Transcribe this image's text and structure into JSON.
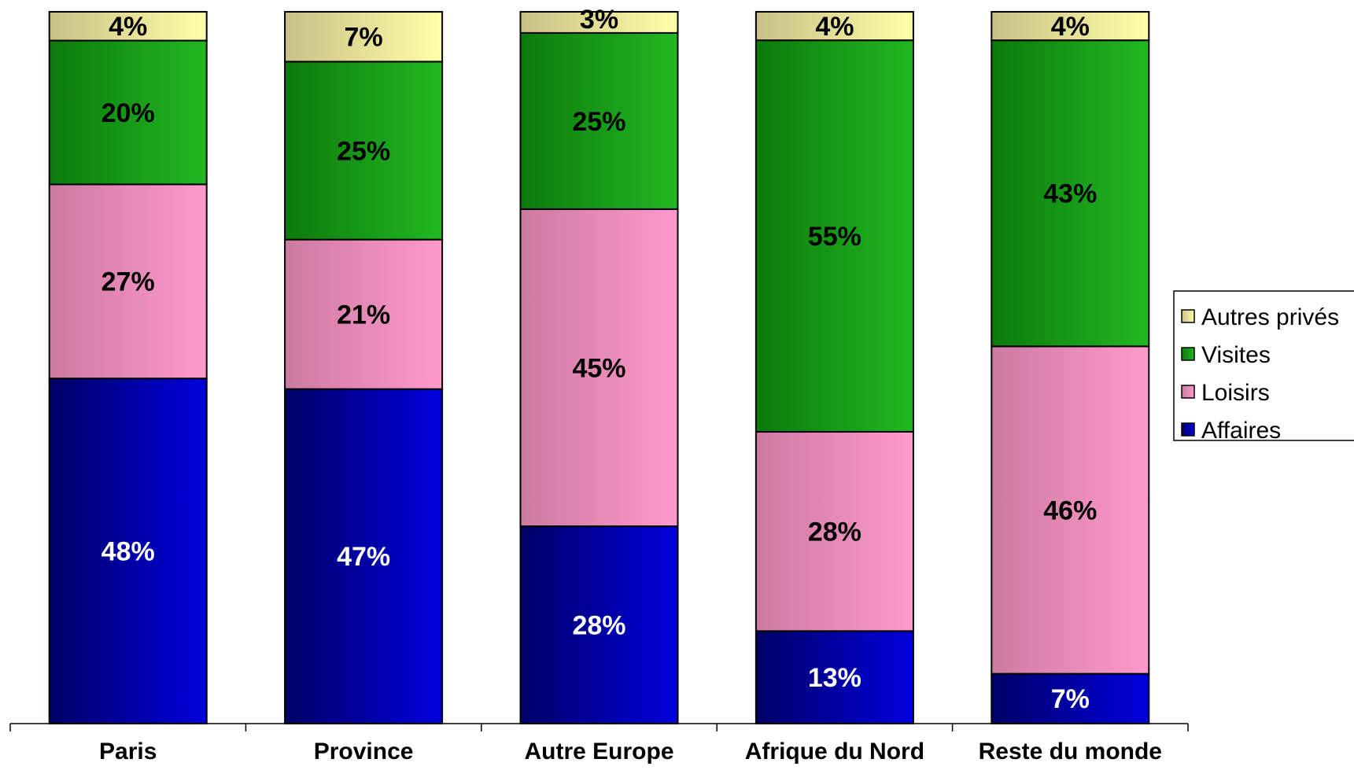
{
  "chart_data": {
    "type": "bar",
    "stacked": true,
    "normalized_percent": true,
    "categories": [
      "Paris",
      "Province",
      "Autre Europe",
      "Afrique du Nord",
      "Reste du monde"
    ],
    "series": [
      {
        "name": "Affaires",
        "values": [
          48,
          47,
          28,
          13,
          7
        ],
        "labels": [
          "48%",
          "47%",
          "28%",
          "13%",
          "7%"
        ],
        "color_dark": "#000066",
        "color_light": "#0000dd",
        "label_color": "#ffffff"
      },
      {
        "name": "Loisirs",
        "values": [
          27,
          21,
          45,
          28,
          46
        ],
        "labels": [
          "27%",
          "21%",
          "45%",
          "28%",
          "46%"
        ],
        "color_dark": "#cc7aa0",
        "color_light": "#ff99cc",
        "label_color": "#000000"
      },
      {
        "name": "Visites",
        "values": [
          20,
          25,
          25,
          55,
          43
        ],
        "labels": [
          "20%",
          "25%",
          "25%",
          "55%",
          "43%"
        ],
        "color_dark": "#0c7a0c",
        "color_light": "#22b822",
        "label_color": "#000000"
      },
      {
        "name": "Autres privés",
        "values": [
          4,
          7,
          3,
          4,
          4
        ],
        "labels": [
          "4%",
          "7%",
          "3%",
          "4%",
          "4%"
        ],
        "color_dark": "#c8c086",
        "color_light": "#ffffa8",
        "label_color": "#000000"
      }
    ],
    "legend_order": [
      "Autres privés",
      "Visites",
      "Loisirs",
      "Affaires"
    ],
    "legend_position": "right",
    "grid": false,
    "title": "",
    "xlabel": "",
    "ylabel": ""
  }
}
